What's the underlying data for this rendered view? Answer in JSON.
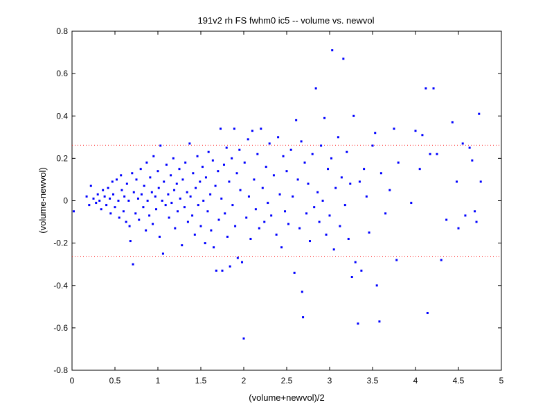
{
  "chart_data": {
    "type": "scatter",
    "title": "191v2 rh FS fwhm0 ic5 -- volume vs. newvol",
    "xlabel": "(volume+newvol)/2",
    "ylabel": "(volume-newvol)",
    "xlim": [
      0,
      5
    ],
    "ylim": [
      -0.8,
      0.8
    ],
    "xticks": [
      "0",
      "0.5",
      "1",
      "1.5",
      "2",
      "2.5",
      "3",
      "3.5",
      "4",
      "4.5",
      "5"
    ],
    "xtick_values": [
      0,
      0.5,
      1,
      1.5,
      2,
      2.5,
      3,
      3.5,
      4,
      4.5,
      5
    ],
    "yticks": [
      "0.8",
      "0.6",
      "0.4",
      "0.2",
      "0",
      "-0.2",
      "-0.4",
      "-0.6",
      "-0.8"
    ],
    "ytick_values": [
      0.8,
      0.6,
      0.4,
      0.2,
      0,
      -0.2,
      -0.4,
      -0.6,
      -0.8
    ],
    "grid": false,
    "box": true,
    "marker_color": "#0000ff",
    "reference_line_color": "#ff0000",
    "reference_lines": [
      0.262,
      -0.262
    ],
    "series": [
      {
        "points": [
          [
            0.02,
            -0.05
          ],
          [
            0.17,
            0.02
          ],
          [
            0.2,
            -0.02
          ],
          [
            0.22,
            0.07
          ],
          [
            0.25,
            0.01
          ],
          [
            0.28,
            -0.01
          ],
          [
            0.3,
            0.03
          ],
          [
            0.32,
            0.0
          ],
          [
            0.34,
            -0.04
          ],
          [
            0.36,
            0.05
          ],
          [
            0.38,
            0.02
          ],
          [
            0.4,
            -0.02
          ],
          [
            0.42,
            0.06
          ],
          [
            0.44,
            0.01
          ],
          [
            0.45,
            -0.06
          ],
          [
            0.47,
            0.09
          ],
          [
            0.48,
            0.03
          ],
          [
            0.5,
            -0.03
          ],
          [
            0.52,
            0.1
          ],
          [
            0.54,
            0.0
          ],
          [
            0.55,
            -0.08
          ],
          [
            0.57,
            0.12
          ],
          [
            0.58,
            0.05
          ],
          [
            0.6,
            -0.05
          ],
          [
            0.61,
            0.02
          ],
          [
            0.63,
            -0.1
          ],
          [
            0.64,
            0.08
          ],
          [
            0.66,
            0.0
          ],
          [
            0.67,
            -0.12
          ],
          [
            0.68,
            -0.19
          ],
          [
            0.7,
            0.13
          ],
          [
            0.71,
            -0.3
          ],
          [
            0.72,
            0.04
          ],
          [
            0.74,
            -0.06
          ],
          [
            0.75,
            0.1
          ],
          [
            0.77,
            0.01
          ],
          [
            0.78,
            -0.09
          ],
          [
            0.8,
            0.15
          ],
          [
            0.81,
            0.03
          ],
          [
            0.83,
            -0.03
          ],
          [
            0.84,
            0.07
          ],
          [
            0.86,
            -0.14
          ],
          [
            0.87,
            0.18
          ],
          [
            0.88,
            0.0
          ],
          [
            0.9,
            -0.07
          ],
          [
            0.91,
            0.11
          ],
          [
            0.93,
            0.04
          ],
          [
            0.94,
            -0.11
          ],
          [
            0.95,
            0.21
          ],
          [
            0.97,
            0.02
          ],
          [
            0.98,
            -0.04
          ],
          [
            1.0,
            0.14
          ],
          [
            1.01,
            0.06
          ],
          [
            1.02,
            -0.17
          ],
          [
            1.03,
            0.26
          ],
          [
            1.05,
            0.0
          ],
          [
            1.06,
            -0.25
          ],
          [
            1.07,
            0.09
          ],
          [
            1.09,
            -0.02
          ],
          [
            1.1,
            0.17
          ],
          [
            1.12,
            0.03
          ],
          [
            1.13,
            -0.08
          ],
          [
            1.15,
            0.12
          ],
          [
            1.16,
            -0.01
          ],
          [
            1.18,
            0.2
          ],
          [
            1.19,
            0.05
          ],
          [
            1.2,
            -0.13
          ],
          [
            1.22,
            0.08
          ],
          [
            1.23,
            -0.05
          ],
          [
            1.25,
            0.15
          ],
          [
            1.26,
            0.01
          ],
          [
            1.28,
            -0.21
          ],
          [
            1.29,
            0.1
          ],
          [
            1.31,
            -0.03
          ],
          [
            1.32,
            0.18
          ],
          [
            1.34,
            0.04
          ],
          [
            1.35,
            -0.1
          ],
          [
            1.37,
            0.27
          ],
          [
            1.38,
            0.02
          ],
          [
            1.4,
            -0.07
          ],
          [
            1.41,
            0.13
          ],
          [
            1.43,
            -0.16
          ],
          [
            1.44,
            0.06
          ],
          [
            1.46,
            0.21
          ],
          [
            1.47,
            -0.02
          ],
          [
            1.49,
            0.09
          ],
          [
            1.5,
            -0.12
          ],
          [
            1.52,
            0.16
          ],
          [
            1.53,
            0.0
          ],
          [
            1.55,
            -0.2
          ],
          [
            1.56,
            0.11
          ],
          [
            1.58,
            -0.05
          ],
          [
            1.59,
            0.23
          ],
          [
            1.61,
            0.03
          ],
          [
            1.62,
            -0.14
          ],
          [
            1.64,
            0.19
          ],
          [
            1.65,
            -0.22
          ],
          [
            1.67,
            0.07
          ],
          [
            1.68,
            -0.33
          ],
          [
            1.7,
            0.14
          ],
          [
            1.71,
            -0.09
          ],
          [
            1.73,
            0.34
          ],
          [
            1.74,
            0.01
          ],
          [
            1.75,
            -0.33
          ],
          [
            1.77,
            0.17
          ],
          [
            1.78,
            -0.06
          ],
          [
            1.8,
            0.25
          ],
          [
            1.81,
            -0.17
          ],
          [
            1.83,
            0.09
          ],
          [
            1.84,
            -0.31
          ],
          [
            1.86,
            0.2
          ],
          [
            1.87,
            -0.02
          ],
          [
            1.89,
            0.34
          ],
          [
            1.9,
            -0.12
          ],
          [
            1.92,
            0.13
          ],
          [
            1.93,
            -0.27
          ],
          [
            1.95,
            0.24
          ],
          [
            1.96,
            0.05
          ],
          [
            1.98,
            -0.29
          ],
          [
            2.0,
            -0.65
          ],
          [
            2.01,
            0.18
          ],
          [
            2.03,
            -0.08
          ],
          [
            2.05,
            0.29
          ],
          [
            2.06,
            0.02
          ],
          [
            2.08,
            -0.18
          ],
          [
            2.1,
            0.33
          ],
          [
            2.12,
            0.1
          ],
          [
            2.14,
            -0.04
          ],
          [
            2.16,
            0.22
          ],
          [
            2.18,
            -0.13
          ],
          [
            2.2,
            0.34
          ],
          [
            2.22,
            0.06
          ],
          [
            2.24,
            -0.1
          ],
          [
            2.26,
            0.16
          ],
          [
            2.28,
            -0.01
          ],
          [
            2.3,
            0.27
          ],
          [
            2.32,
            -0.07
          ],
          [
            2.35,
            0.12
          ],
          [
            2.38,
            -0.16
          ],
          [
            2.4,
            0.3
          ],
          [
            2.42,
            0.03
          ],
          [
            2.44,
            -0.22
          ],
          [
            2.46,
            0.21
          ],
          [
            2.48,
            -0.05
          ],
          [
            2.5,
            0.14
          ],
          [
            2.52,
            -0.11
          ],
          [
            2.55,
            0.24
          ],
          [
            2.57,
            0.02
          ],
          [
            2.59,
            -0.34
          ],
          [
            2.61,
            0.38
          ],
          [
            2.63,
            0.1
          ],
          [
            2.65,
            -0.13
          ],
          [
            2.67,
            0.28
          ],
          [
            2.68,
            -0.43
          ],
          [
            2.69,
            -0.55
          ],
          [
            2.71,
            0.18
          ],
          [
            2.73,
            -0.06
          ],
          [
            2.75,
            0.08
          ],
          [
            2.77,
            -0.19
          ],
          [
            2.8,
            0.22
          ],
          [
            2.82,
            -0.03
          ],
          [
            2.84,
            0.53
          ],
          [
            2.86,
            0.04
          ],
          [
            2.88,
            -0.1
          ],
          [
            2.9,
            0.26
          ],
          [
            2.92,
            0.0
          ],
          [
            2.94,
            0.39
          ],
          [
            2.96,
            -0.16
          ],
          [
            2.98,
            0.15
          ],
          [
            3.0,
            -0.07
          ],
          [
            3.02,
            0.2
          ],
          [
            3.03,
            0.71
          ],
          [
            3.05,
            -0.23
          ],
          [
            3.07,
            0.06
          ],
          [
            3.1,
            0.3
          ],
          [
            3.12,
            -0.12
          ],
          [
            3.14,
            0.11
          ],
          [
            3.16,
            0.67
          ],
          [
            3.18,
            -0.02
          ],
          [
            3.2,
            0.23
          ],
          [
            3.22,
            -0.18
          ],
          [
            3.24,
            0.08
          ],
          [
            3.26,
            -0.36
          ],
          [
            3.28,
            0.4
          ],
          [
            3.3,
            -0.29
          ],
          [
            3.33,
            -0.58
          ],
          [
            3.35,
            0.09
          ],
          [
            3.37,
            -0.33
          ],
          [
            3.4,
            0.15
          ],
          [
            3.43,
            0.02
          ],
          [
            3.46,
            -0.15
          ],
          [
            3.5,
            0.26
          ],
          [
            3.53,
            0.32
          ],
          [
            3.55,
            -0.4
          ],
          [
            3.58,
            -0.57
          ],
          [
            3.6,
            0.13
          ],
          [
            3.65,
            -0.06
          ],
          [
            3.7,
            0.05
          ],
          [
            3.75,
            0.34
          ],
          [
            3.78,
            -0.28
          ],
          [
            3.8,
            0.18
          ],
          [
            3.95,
            -0.01
          ],
          [
            4.0,
            0.33
          ],
          [
            4.05,
            0.15
          ],
          [
            4.08,
            0.31
          ],
          [
            4.12,
            0.53
          ],
          [
            4.14,
            -0.53
          ],
          [
            4.17,
            0.22
          ],
          [
            4.21,
            0.53
          ],
          [
            4.25,
            0.22
          ],
          [
            4.3,
            -0.28
          ],
          [
            4.36,
            -0.09
          ],
          [
            4.43,
            0.37
          ],
          [
            4.48,
            0.09
          ],
          [
            4.5,
            -0.13
          ],
          [
            4.55,
            0.27
          ],
          [
            4.58,
            -0.07
          ],
          [
            4.63,
            0.25
          ],
          [
            4.66,
            0.19
          ],
          [
            4.69,
            -0.05
          ],
          [
            4.71,
            -0.1
          ],
          [
            4.74,
            0.41
          ],
          [
            4.76,
            0.09
          ]
        ]
      }
    ]
  }
}
